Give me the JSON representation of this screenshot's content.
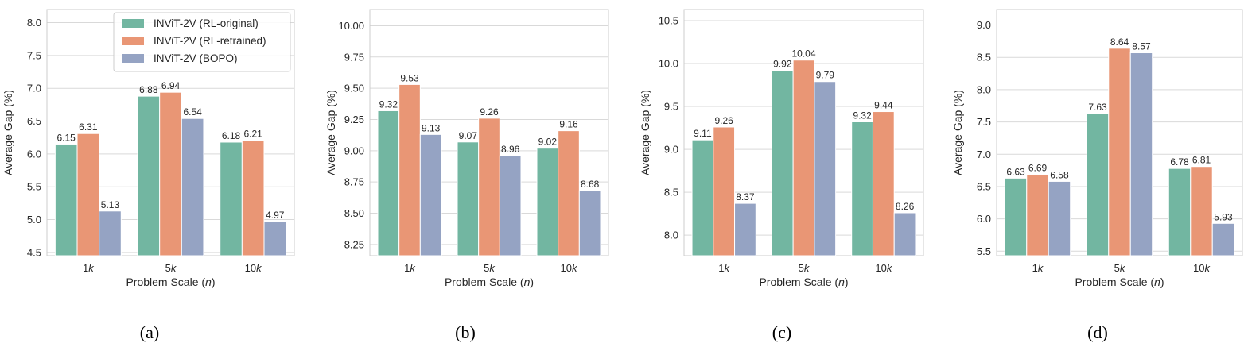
{
  "colors": {
    "RL-original": "#72b6a1",
    "RL-retrained": "#e99675",
    "BOPO": "#95a3c3",
    "grid": "#d9d9d9",
    "frame": "#cccccc"
  },
  "legend": {
    "entries": [
      "INViT-2V (RL-original)",
      "INViT-2V (RL-retrained)",
      "INViT-2V (BOPO)"
    ]
  },
  "chart_data": [
    {
      "type": "bar",
      "caption": "(a)",
      "xlabel": "Problem Scale (n)",
      "ylabel": "Average Gap (%)",
      "categories": [
        "1k",
        "5k",
        "10k"
      ],
      "ylim": [
        4.45,
        8.2
      ],
      "yticks": [
        4.5,
        5.0,
        5.5,
        6.0,
        6.5,
        7.0,
        7.5,
        8.0
      ],
      "ytick_labels": [
        "4.5",
        "5.0",
        "5.5",
        "6.0",
        "6.5",
        "7.0",
        "7.5",
        "8.0"
      ],
      "series": [
        {
          "name": "INViT-2V (RL-original)",
          "values": [
            6.15,
            6.88,
            6.18
          ]
        },
        {
          "name": "INViT-2V (RL-retrained)",
          "values": [
            6.31,
            6.94,
            6.21
          ]
        },
        {
          "name": "INViT-2V (BOPO)",
          "values": [
            5.13,
            6.54,
            4.97
          ]
        }
      ],
      "data_labels": [
        [
          "6.15",
          "6.88",
          "6.18"
        ],
        [
          "6.31",
          "6.94",
          "6.21"
        ],
        [
          "5.13",
          "6.54",
          "4.97"
        ]
      ],
      "legend": true,
      "grid": "horizontal"
    },
    {
      "type": "bar",
      "caption": "(b)",
      "xlabel": "Problem Scale (n)",
      "ylabel": "Average Gap (%)",
      "categories": [
        "1k",
        "5k",
        "10k"
      ],
      "ylim": [
        8.16,
        10.13
      ],
      "yticks": [
        8.25,
        8.5,
        8.75,
        9.0,
        9.25,
        9.5,
        9.75,
        10.0
      ],
      "ytick_labels": [
        "8.25",
        "8.50",
        "8.75",
        "9.00",
        "9.25",
        "9.50",
        "9.75",
        "10.00"
      ],
      "series": [
        {
          "name": "INViT-2V (RL-original)",
          "values": [
            9.32,
            9.07,
            9.02
          ]
        },
        {
          "name": "INViT-2V (RL-retrained)",
          "values": [
            9.53,
            9.26,
            9.16
          ]
        },
        {
          "name": "INViT-2V (BOPO)",
          "values": [
            9.13,
            8.96,
            8.68
          ]
        }
      ],
      "data_labels": [
        [
          "9.32",
          "9.07",
          "9.02"
        ],
        [
          "9.53",
          "9.26",
          "9.16"
        ],
        [
          "9.13",
          "8.96",
          "8.68"
        ]
      ],
      "legend": false,
      "grid": "horizontal"
    },
    {
      "type": "bar",
      "caption": "(c)",
      "xlabel": "Problem Scale (n)",
      "ylabel": "Average Gap (%)",
      "categories": [
        "1k",
        "5k",
        "10k"
      ],
      "ylim": [
        7.76,
        10.63
      ],
      "yticks": [
        8.0,
        8.5,
        9.0,
        9.5,
        10.0,
        10.5
      ],
      "ytick_labels": [
        "8.0",
        "8.5",
        "9.0",
        "9.5",
        "10.0",
        "10.5"
      ],
      "series": [
        {
          "name": "INViT-2V (RL-original)",
          "values": [
            9.11,
            9.92,
            9.32
          ]
        },
        {
          "name": "INViT-2V (RL-retrained)",
          "values": [
            9.26,
            10.04,
            9.44
          ]
        },
        {
          "name": "INViT-2V (BOPO)",
          "values": [
            8.37,
            9.79,
            8.26
          ]
        }
      ],
      "data_labels": [
        [
          "9.11",
          "9.92",
          "9.32"
        ],
        [
          "9.26",
          "10.04",
          "9.44"
        ],
        [
          "8.37",
          "9.79",
          "8.26"
        ]
      ],
      "legend": false,
      "grid": "horizontal"
    },
    {
      "type": "bar",
      "caption": "(d)",
      "xlabel": "Problem Scale (n)",
      "ylabel": "Average Gap (%)",
      "categories": [
        "1k",
        "5k",
        "10k"
      ],
      "ylim": [
        5.43,
        9.24
      ],
      "yticks": [
        5.5,
        6.0,
        6.5,
        7.0,
        7.5,
        8.0,
        8.5,
        9.0
      ],
      "ytick_labels": [
        "5.5",
        "6.0",
        "6.5",
        "7.0",
        "7.5",
        "8.0",
        "8.5",
        "9.0"
      ],
      "series": [
        {
          "name": "INViT-2V (RL-original)",
          "values": [
            6.63,
            7.63,
            6.78
          ]
        },
        {
          "name": "INViT-2V (RL-retrained)",
          "values": [
            6.69,
            8.64,
            6.81
          ]
        },
        {
          "name": "INViT-2V (BOPO)",
          "values": [
            6.58,
            8.57,
            5.93
          ]
        }
      ],
      "data_labels": [
        [
          "6.63",
          "7.63",
          "6.78"
        ],
        [
          "6.69",
          "8.64",
          "6.81"
        ],
        [
          "6.58",
          "8.57",
          "5.93"
        ]
      ],
      "legend": false,
      "grid": "horizontal"
    }
  ]
}
